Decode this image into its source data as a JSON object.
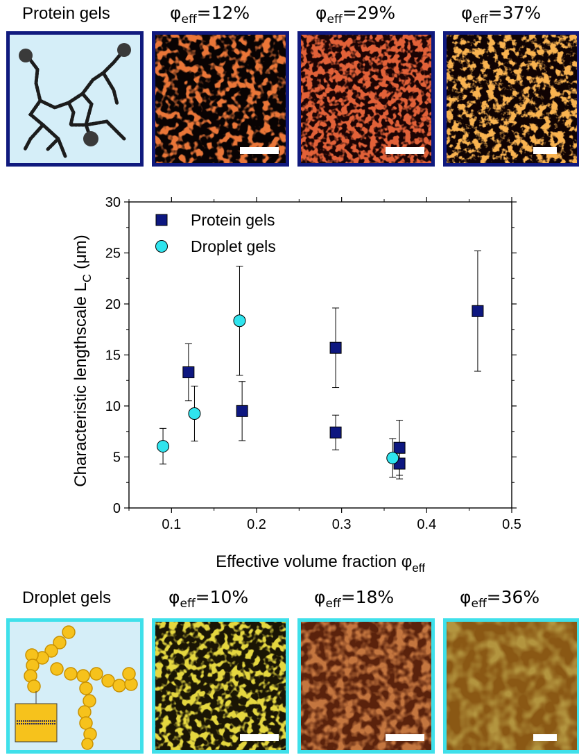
{
  "top_row": {
    "heading": "Protein gels",
    "panels": [
      {
        "phi_label": "φ",
        "sub": "eff",
        "value": "=12%"
      },
      {
        "phi_label": "φ",
        "sub": "eff",
        "value": "=29%"
      },
      {
        "phi_label": "φ",
        "sub": "eff",
        "value": "=37%"
      }
    ],
    "border_color": "#101a7e"
  },
  "bottom_row": {
    "heading": "Droplet gels",
    "panels": [
      {
        "phi_label": "φ",
        "sub": "eff",
        "value": "=10%"
      },
      {
        "phi_label": "φ",
        "sub": "eff",
        "value": "=18%"
      },
      {
        "phi_label": "φ",
        "sub": "eff",
        "value": "=36%"
      }
    ],
    "border_color": "#3fe0ea"
  },
  "chart_data": {
    "type": "scatter",
    "ylabel_main": "Characteristic lengthscale L",
    "ylabel_sub": "C",
    "ylabel_unit": " (μm)",
    "xlabel_main": "Effective volume fraction φ",
    "xlabel_sub": "eff",
    "xlim": [
      0.05,
      0.5
    ],
    "ylim": [
      0,
      30
    ],
    "xticks": [
      0.1,
      0.2,
      0.3,
      0.4,
      0.5
    ],
    "xtick_labels": [
      "0.1",
      "0.2",
      "0.3",
      "0.4",
      "0.5"
    ],
    "yticks": [
      0,
      5,
      10,
      15,
      20,
      25,
      30
    ],
    "ytick_labels": [
      "0",
      "5",
      "10",
      "15",
      "20",
      "25",
      "30"
    ],
    "legend_position": "top-left",
    "series": [
      {
        "name": "Protein gels",
        "marker": "square",
        "color": "#0d1780",
        "points": [
          {
            "x": 0.12,
            "y": 13.3,
            "err": 2.8
          },
          {
            "x": 0.183,
            "y": 9.5,
            "err": 2.9
          },
          {
            "x": 0.293,
            "y": 15.7,
            "err": 3.9
          },
          {
            "x": 0.293,
            "y": 7.4,
            "err": 1.7
          },
          {
            "x": 0.368,
            "y": 5.9,
            "err": 2.7
          },
          {
            "x": 0.368,
            "y": 4.35,
            "err": 1.5
          },
          {
            "x": 0.46,
            "y": 19.3,
            "err": 5.9
          }
        ]
      },
      {
        "name": "Droplet gels",
        "marker": "circle",
        "color": "#2fe4ee",
        "points": [
          {
            "x": 0.09,
            "y": 6.05,
            "err": 1.75
          },
          {
            "x": 0.127,
            "y": 9.25,
            "err": 2.7
          },
          {
            "x": 0.18,
            "y": 18.35,
            "err": 5.35
          },
          {
            "x": 0.36,
            "y": 4.9,
            "err": 1.9
          }
        ]
      }
    ]
  }
}
